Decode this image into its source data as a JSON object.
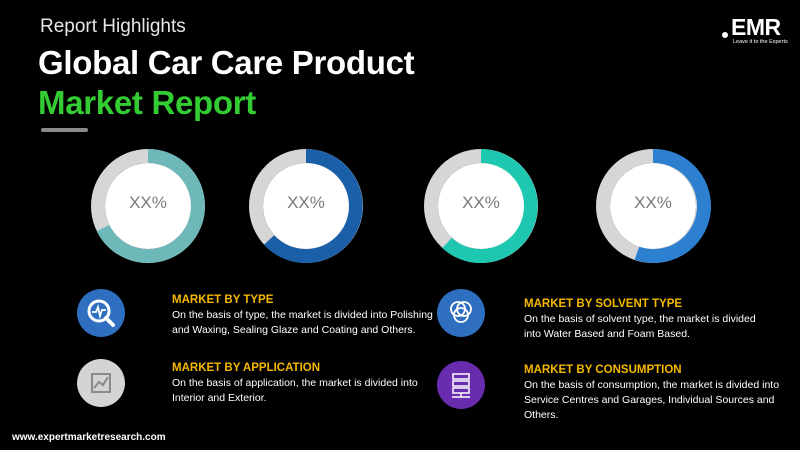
{
  "header": {
    "subtitle": "Report Highlights",
    "title_line1": "Global Car Care Product",
    "title_line2": "Market Report"
  },
  "logo": {
    "text": "EMR",
    "tagline": "Leave it to the Experts"
  },
  "donuts": [
    {
      "value": "XX%",
      "color": "#6fb8b9"
    },
    {
      "value": "XX%",
      "color": "#1a5fa8"
    },
    {
      "value": "XX%",
      "color": "#1ec8b0"
    },
    {
      "value": "XX%",
      "color": "#2d7fd0"
    }
  ],
  "segments": [
    {
      "heading": "MARKET BY TYPE",
      "text": "On the basis of type, the market is divided into Polishing and Waxing, Sealing Glaze and Coating and Others.",
      "icon": "magnifier-chart-icon"
    },
    {
      "heading": "MARKET  BY APPLICATION",
      "text": "On the basis of application, the market is divided into Interior and Exterior.",
      "icon": "line-chart-icon"
    },
    {
      "heading": "MARKET BY SOLVENT TYPE",
      "text": "On the basis of solvent type, the market is divided into Water Based and Foam Based.",
      "icon": "venn-diagram-icon"
    },
    {
      "heading": "MARKET BY CONSUMPTION",
      "text": "On the basis of consumption, the market is divided into Service Centres and Garages, Individual Sources and Others.",
      "icon": "server-network-icon"
    }
  ],
  "footer": {
    "url": "www.expertmarketresearch.com"
  }
}
